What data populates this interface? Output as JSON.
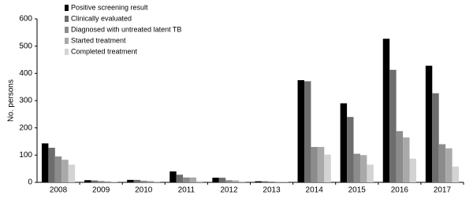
{
  "chart_data": {
    "type": "bar",
    "y_label": "No. persons",
    "categories": [
      "2008",
      "2009",
      "2010",
      "2011",
      "2012",
      "2013",
      "2014",
      "2015",
      "2016",
      "2017"
    ],
    "series": [
      {
        "name": "Positive screening result",
        "color": "#000000",
        "values": [
          143,
          8,
          9,
          40,
          17,
          4,
          375,
          290,
          527,
          428
        ]
      },
      {
        "name": "Clinically evaluated",
        "color": "#6d6d6d",
        "values": [
          127,
          7,
          9,
          28,
          17,
          4,
          371,
          240,
          413,
          327
        ]
      },
      {
        "name": "Diagnosed with untreated latent TB",
        "color": "#8c8c8c",
        "values": [
          95,
          5,
          6,
          18,
          8,
          3,
          130,
          105,
          188,
          140
        ]
      },
      {
        "name": "Started treatment",
        "color": "#a9a9a9",
        "values": [
          83,
          4,
          5,
          18,
          7,
          2,
          130,
          100,
          165,
          125
        ]
      },
      {
        "name": "Completed treatment",
        "color": "#d3d3d3",
        "values": [
          65,
          3,
          4,
          5,
          4,
          1,
          102,
          65,
          87,
          58
        ]
      }
    ],
    "ylim": [
      0,
      600
    ],
    "yticks": [
      0,
      100,
      200,
      300,
      400,
      500,
      600
    ],
    "legend": "top-left"
  }
}
